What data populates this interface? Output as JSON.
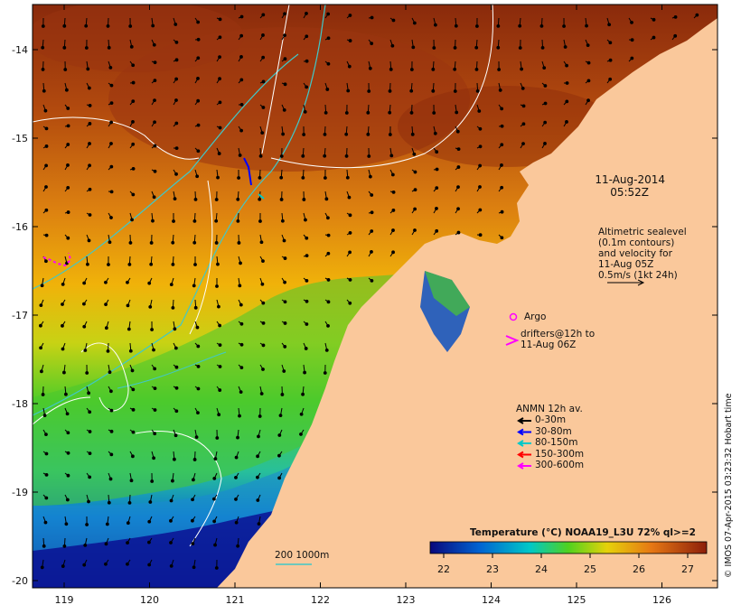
{
  "map": {
    "x_axis_ticks": [
      "119",
      "120",
      "121",
      "122",
      "123",
      "124",
      "125",
      "126"
    ],
    "y_axis_ticks": [
      "-14",
      "-15",
      "-16",
      "-17",
      "-18",
      "-19",
      "-20"
    ]
  },
  "annotations": {
    "date": "11-Aug-2014",
    "time": "05:52Z",
    "altimetry_lines": [
      "Altimetric sealevel",
      "(0.1m contours)",
      "and velocity for",
      "11-Aug 05Z",
      "0.5m/s (1kt 24h)"
    ],
    "argo_label": "Argo",
    "drifters_lines": [
      "drifters@12h to",
      "11-Aug 06Z"
    ],
    "contour_legend": "200  1000m"
  },
  "anmn_legend": {
    "title": "ANMN 12h av.",
    "items": [
      {
        "label": "0-30m",
        "color": "#000000"
      },
      {
        "label": "30-80m",
        "color": "#0000ff"
      },
      {
        "label": "80-150m",
        "color": "#00c8c8"
      },
      {
        "label": "150-300m",
        "color": "#ff0000"
      },
      {
        "label": "300-600m",
        "color": "#ff00ff"
      }
    ]
  },
  "colorbar": {
    "title": "Temperature (°C) NOAA19_L3U 72% ql>=2",
    "ticks": [
      "22",
      "23",
      "24",
      "25",
      "26",
      "27"
    ]
  },
  "copyright": "© IMOS 07-Apr-2015 03:23:32 Hobart time",
  "colors": {
    "land": "#fac89b",
    "t22": "#0a0a8c",
    "t23": "#0064d2",
    "t24": "#00c8b4",
    "t25": "#50d21e",
    "t26": "#f0b400",
    "t27": "#8c1e0a",
    "contour": "#ffffff",
    "isobath": "#40c8c8"
  }
}
